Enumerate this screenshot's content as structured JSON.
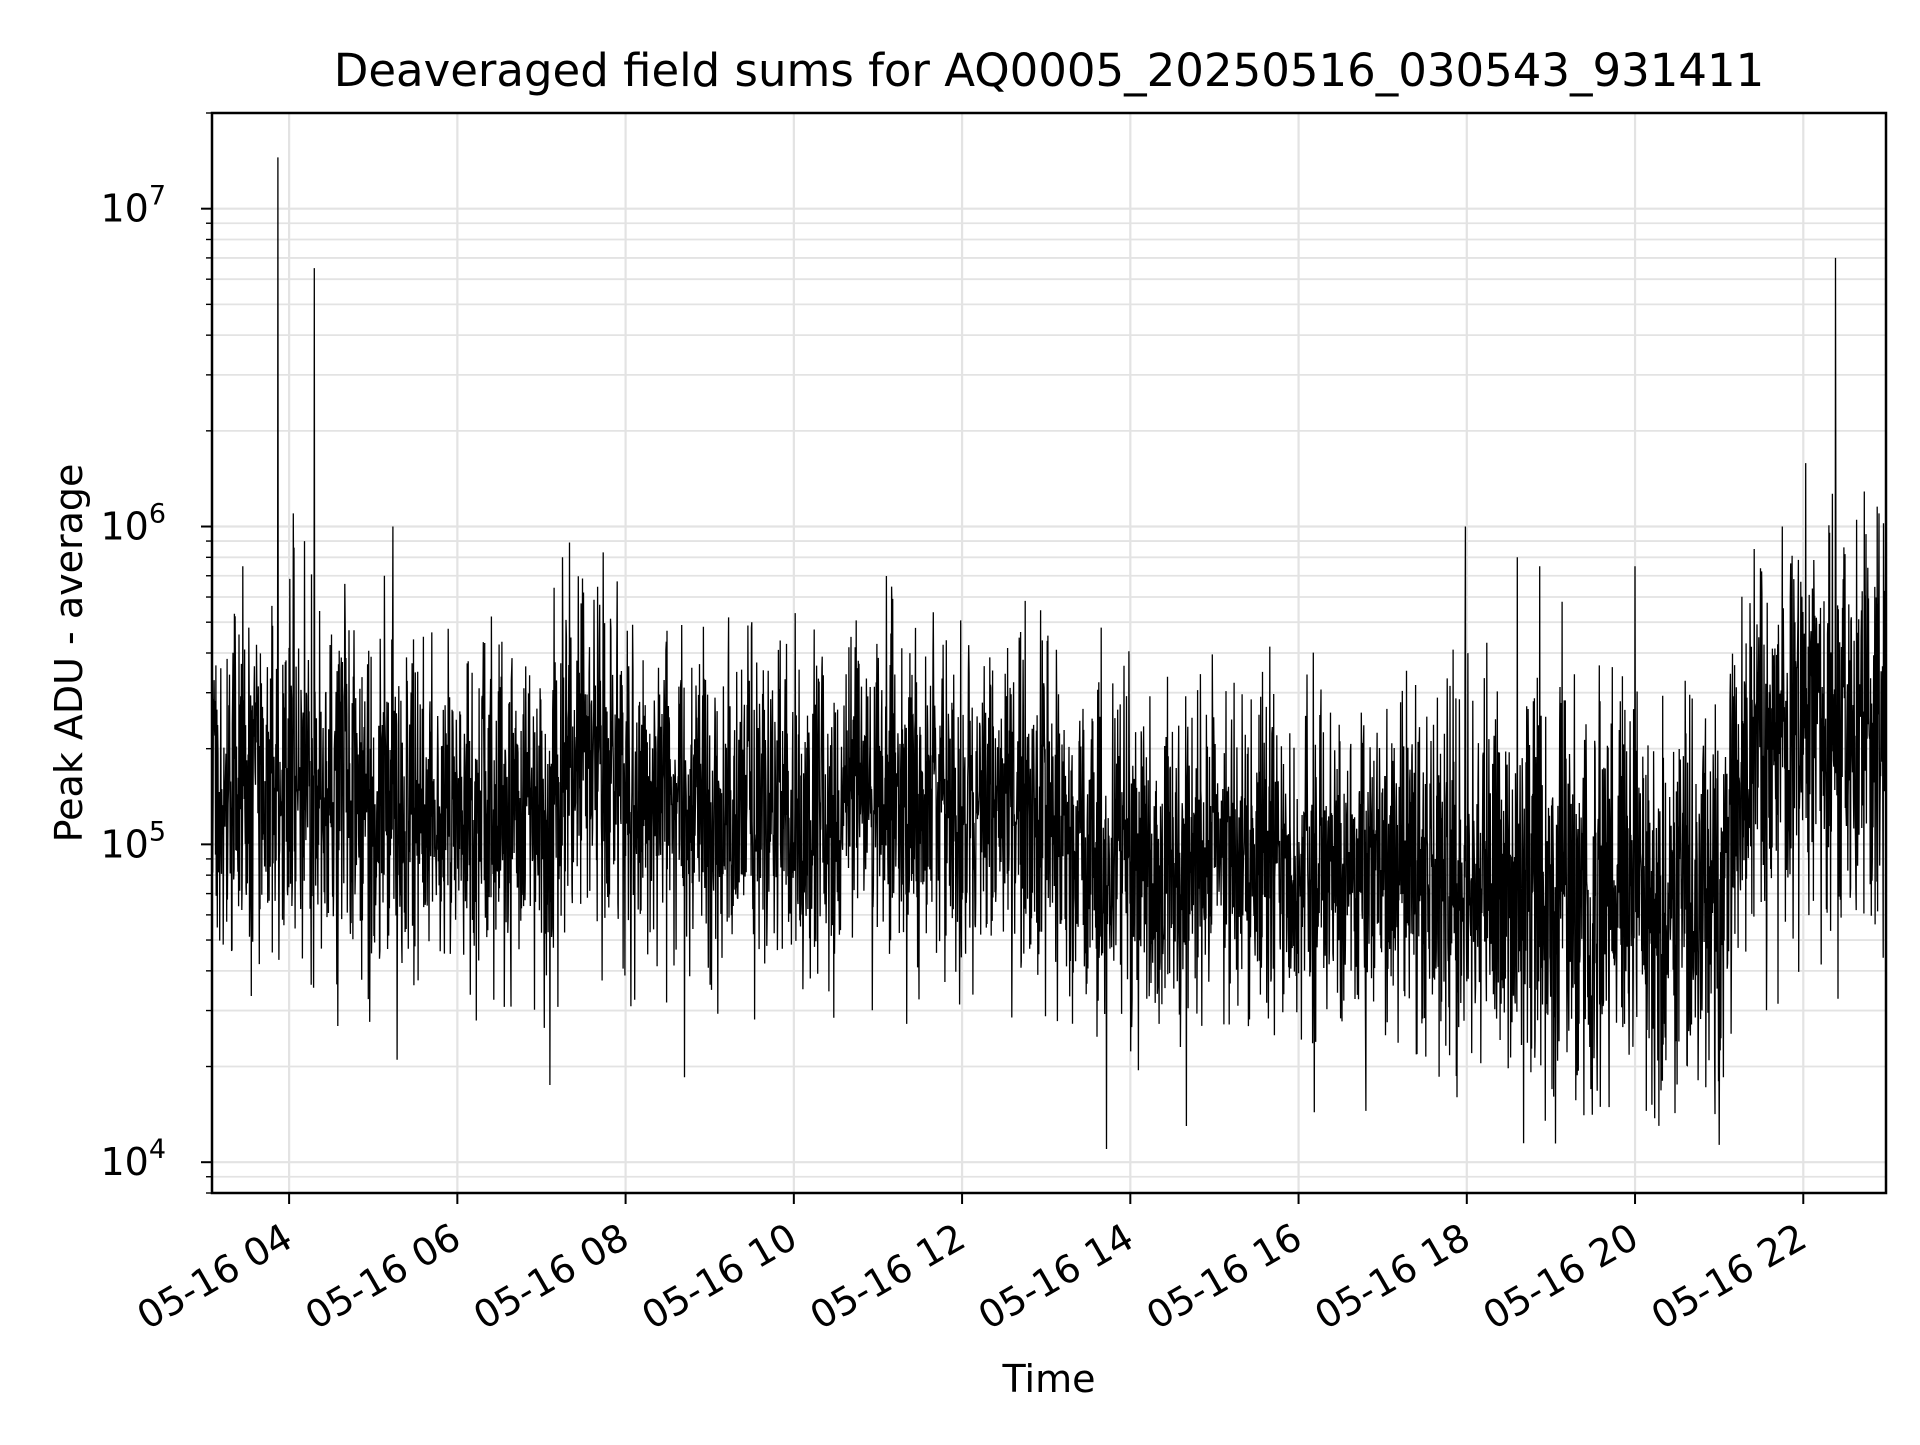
{
  "chart_data": {
    "type": "line",
    "title": "Deaveraged field sums for AQ0005_20250516_030543_931411",
    "xlabel": "Time",
    "ylabel": "Peak ADU - average",
    "yscale": "log",
    "xlim": [
      "2025-05-16 03:05",
      "2025-05-16 22:59"
    ],
    "ylim": [
      8000,
      20000000
    ],
    "grid": true,
    "line_color": "#000000",
    "x_tick_labels": [
      "05-16 04",
      "05-16 06",
      "05-16 08",
      "05-16 10",
      "05-16 12",
      "05-16 14",
      "05-16 16",
      "05-16 18",
      "05-16 20",
      "05-16 22"
    ],
    "x_tick_times": [
      "2025-05-16 04:00",
      "2025-05-16 06:00",
      "2025-05-16 08:00",
      "2025-05-16 10:00",
      "2025-05-16 12:00",
      "2025-05-16 14:00",
      "2025-05-16 16:00",
      "2025-05-16 18:00",
      "2025-05-16 20:00",
      "2025-05-16 22:00"
    ],
    "y_ticks": [
      {
        "value": 10000,
        "base": "10",
        "exp": "4"
      },
      {
        "value": 100000,
        "base": "10",
        "exp": "5"
      },
      {
        "value": 1000000,
        "base": "10",
        "exp": "6"
      },
      {
        "value": 10000000,
        "base": "10",
        "exp": "7"
      }
    ],
    "baseline": {
      "x": [
        "2025-05-16 03:05",
        "2025-05-16 04:00",
        "2025-05-16 05:00",
        "2025-05-16 06:00",
        "2025-05-16 07:00",
        "2025-05-16 07:30",
        "2025-05-16 08:00",
        "2025-05-16 09:00",
        "2025-05-16 10:00",
        "2025-05-16 11:00",
        "2025-05-16 12:00",
        "2025-05-16 13:00",
        "2025-05-16 14:00",
        "2025-05-16 15:00",
        "2025-05-16 16:00",
        "2025-05-16 17:00",
        "2025-05-16 18:00",
        "2025-05-16 19:00",
        "2025-05-16 20:00",
        "2025-05-16 21:00",
        "2025-05-16 21:30",
        "2025-05-16 22:00",
        "2025-05-16 22:59"
      ],
      "y": [
        135000,
        160000,
        125000,
        125000,
        120000,
        200000,
        140000,
        125000,
        135000,
        135000,
        140000,
        115000,
        85000,
        90000,
        85000,
        85000,
        80000,
        65000,
        65000,
        75000,
        200000,
        240000,
        230000
      ]
    },
    "spikes": {
      "x": [
        "2025-05-16 03:52",
        "2025-05-16 04:18",
        "2025-05-16 04:03",
        "2025-05-16 04:11",
        "2025-05-16 03:27",
        "2025-05-16 05:14",
        "2025-05-16 05:08",
        "2025-05-16 07:15",
        "2025-05-16 07:30",
        "2025-05-16 09:30",
        "2025-05-16 17:59",
        "2025-05-16 18:36",
        "2025-05-16 18:52",
        "2025-05-16 19:08",
        "2025-05-16 20:00",
        "2025-05-16 21:25",
        "2025-05-16 21:45",
        "2025-05-16 22:23",
        "2025-05-16 22:38",
        "2025-05-16 22:54"
      ],
      "y": [
        14500000,
        6500000,
        1100000,
        900000,
        750000,
        1000000,
        700000,
        800000,
        620000,
        500000,
        1000000,
        800000,
        750000,
        580000,
        750000,
        850000,
        1000000,
        7000000,
        1050000,
        1100000
      ]
    },
    "dips": {
      "x": [
        "2025-05-16 13:43",
        "2025-05-16 14:40",
        "2025-05-16 05:17",
        "2025-05-16 07:06",
        "2025-05-16 08:42",
        "2025-05-16 16:48",
        "2025-05-16 18:56",
        "2025-05-16 20:08",
        "2025-05-16 17:53",
        "2025-05-16 21:03"
      ],
      "y": [
        11000,
        13000,
        21000,
        17500,
        18500,
        14500,
        13500,
        14500,
        16000,
        18500
      ]
    }
  }
}
